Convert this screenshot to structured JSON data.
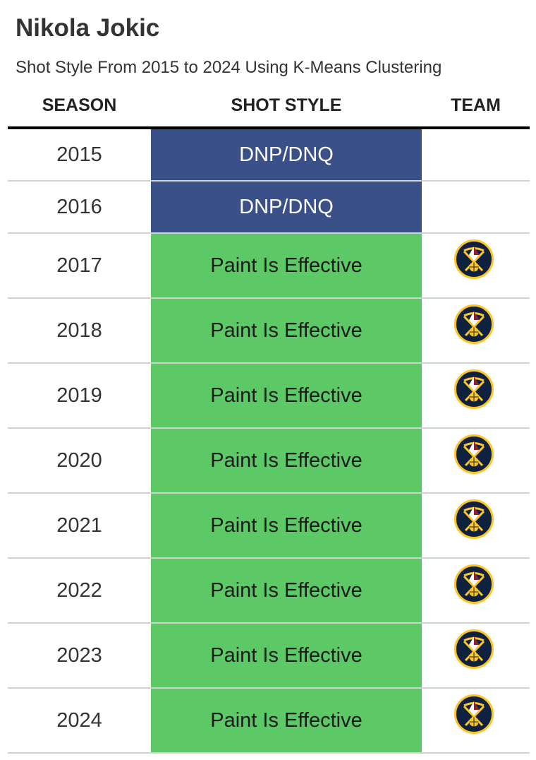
{
  "header": {
    "title": "Nikola Jokic",
    "subtitle": "Shot Style From 2015 to 2024 Using K-Means Clustering"
  },
  "chart_data": {
    "type": "table",
    "columns": [
      "SEASON",
      "SHOT STYLE",
      "TEAM"
    ],
    "style_colors": {
      "DNP/DNQ": {
        "bg": "#3a5089",
        "fg": "#ffffff"
      },
      "Paint Is Effective": {
        "bg": "#5cc866",
        "fg": "#1b1b1b"
      }
    },
    "team_icon": "denver-nuggets-logo-icon",
    "rows": [
      {
        "season": "2015",
        "style": "DNP/DNQ",
        "team": ""
      },
      {
        "season": "2016",
        "style": "DNP/DNQ",
        "team": ""
      },
      {
        "season": "2017",
        "style": "Paint Is Effective",
        "team": "DEN"
      },
      {
        "season": "2018",
        "style": "Paint Is Effective",
        "team": "DEN"
      },
      {
        "season": "2019",
        "style": "Paint Is Effective",
        "team": "DEN"
      },
      {
        "season": "2020",
        "style": "Paint Is Effective",
        "team": "DEN"
      },
      {
        "season": "2021",
        "style": "Paint Is Effective",
        "team": "DEN"
      },
      {
        "season": "2022",
        "style": "Paint Is Effective",
        "team": "DEN"
      },
      {
        "season": "2023",
        "style": "Paint Is Effective",
        "team": "DEN"
      },
      {
        "season": "2024",
        "style": "Paint Is Effective",
        "team": "DEN"
      }
    ]
  }
}
